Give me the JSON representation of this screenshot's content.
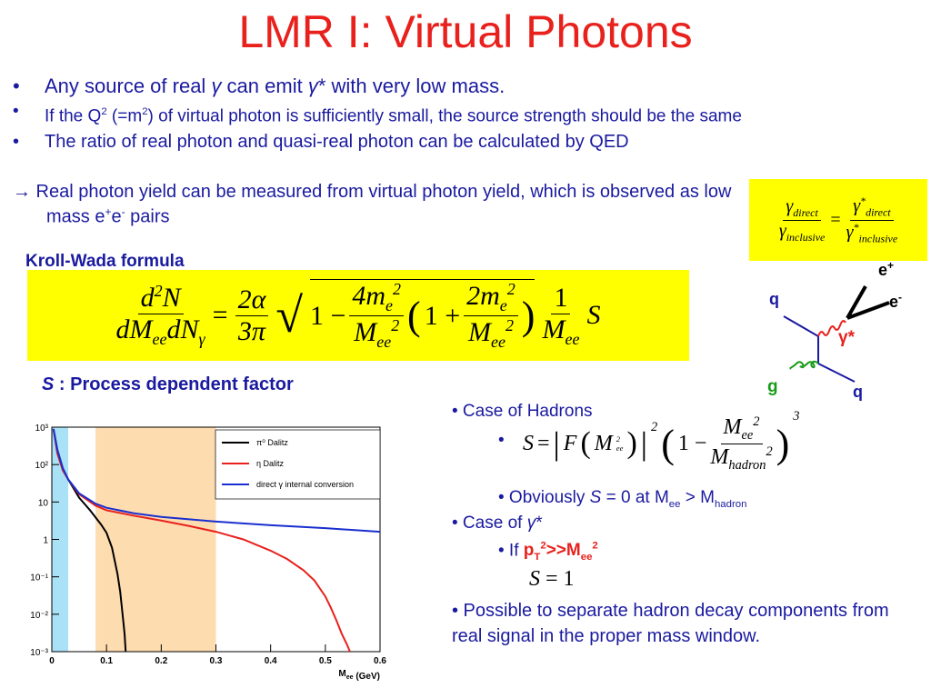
{
  "title": "LMR I: Virtual Photons",
  "bullet": "•",
  "bullets": [
    [
      "Any source of real ",
      {
        "i": "γ"
      },
      " can emit ",
      {
        "i": "γ"
      },
      "* with very low mass."
    ],
    [
      "If the Q",
      {
        "sup": "2"
      },
      " (=m",
      {
        "sup": "2"
      },
      ") of virtual photon is sufficiently small, the source strength should be the same"
    ],
    [
      "The ratio of real photon and quasi-real photon can be calculated by QED"
    ]
  ],
  "conclusion": [
    "→ Real photon yield can be measured from virtual photon yield, which is observed as low mass e",
    {
      "sup": "+"
    },
    "e",
    {
      "sup": "-"
    },
    " pairs"
  ],
  "ratio": [
    "γ",
    "direct",
    "γ",
    "inclusive",
    "=",
    "γ",
    "*",
    "direct",
    "γ",
    "*",
    "inclusive"
  ],
  "kroll_wada": {
    "label": "Kroll-Wada formula",
    "f": [
      "d",
      "2",
      "N",
      "dM",
      "ee",
      "dN",
      "γ",
      "=",
      "2α",
      "3π",
      "1 −",
      "4m",
      "e",
      "2",
      "M",
      "ee",
      "2",
      "1 +",
      "2m",
      "e",
      "2",
      "M",
      "ee",
      "2",
      "1",
      "M",
      "ee",
      "S"
    ]
  },
  "s_label": [
    "S",
    " : Process dependent factor"
  ],
  "feynman": {
    "e_plus": [
      "e",
      "+"
    ],
    "e_minus": [
      "e",
      "-"
    ],
    "q_in": "q",
    "q_out": "q",
    "gamma": "γ*",
    "gluon": "g"
  },
  "right": {
    "hadrons": "• Case of Hadrons",
    "hadron_formula": [
      "S",
      "=",
      "F",
      "M",
      "ee",
      "2",
      "2",
      "1 −",
      "M",
      "ee",
      "2",
      "M",
      "hadron",
      "2",
      "3"
    ],
    "obviously": [
      "• Obviously ",
      {
        "i": "S"
      },
      " = 0 at M",
      {
        "sub": "ee"
      },
      " > M",
      {
        "sub": "hadron"
      }
    ],
    "gamma_case": [
      "• Case of ",
      {
        "i": "γ"
      },
      "*"
    ],
    "if_prefix": "• If ",
    "if_cond": [
      "p",
      {
        "sub": "T"
      },
      {
        "sup": "2"
      },
      ">>M",
      {
        "sub": "ee"
      },
      {
        "sup": "2"
      }
    ],
    "s_one": [
      "S",
      "=",
      "1"
    ],
    "possible": "• Possible to separate hadron decay components from real signal in the proper mass window."
  },
  "plot": {
    "type": "line",
    "log_y": true,
    "xlim": [
      0,
      0.6
    ],
    "xticks": [
      0,
      0.1,
      0.2,
      0.3,
      0.4,
      0.5,
      0.6
    ],
    "ylim": [
      0.001,
      1000
    ],
    "yticks": [
      {
        "value": 0.001,
        "label": "10⁻³"
      },
      {
        "value": 0.01,
        "label": "10⁻²"
      },
      {
        "value": 0.1,
        "label": "10⁻¹"
      },
      1,
      10,
      {
        "value": 100,
        "label": "10²"
      },
      {
        "value": 1000,
        "label": "10³"
      }
    ],
    "xlabel": [
      "M",
      {
        "sub": "ee"
      },
      " (GeV)"
    ],
    "bands": [
      {
        "from": 0,
        "to": 0.03,
        "color": "#a9e2f7"
      },
      {
        "from": 0.08,
        "to": 0.3,
        "color": "#fddcb0"
      }
    ],
    "series": [
      {
        "name": "π⁰ Dalitz",
        "color": "#000000",
        "x": [
          0.003,
          0.01,
          0.02,
          0.03,
          0.05,
          0.07,
          0.09,
          0.1,
          0.11,
          0.12,
          0.125,
          0.13,
          0.133,
          0.135
        ],
        "values": [
          900,
          250,
          80,
          40,
          13,
          6,
          2.5,
          1.5,
          0.6,
          0.12,
          0.04,
          0.008,
          0.003,
          0.001
        ]
      },
      {
        "name": "η Dalitz",
        "color": "#e8211d",
        "x": [
          0.003,
          0.01,
          0.02,
          0.03,
          0.05,
          0.08,
          0.1,
          0.15,
          0.2,
          0.25,
          0.3,
          0.35,
          0.4,
          0.43,
          0.46,
          0.48,
          0.5,
          0.51,
          0.52,
          0.53,
          0.54,
          0.545
        ],
        "values": [
          900,
          200,
          70,
          40,
          16,
          8,
          6,
          4.3,
          3.2,
          2.3,
          1.6,
          1.0,
          0.5,
          0.3,
          0.15,
          0.08,
          0.03,
          0.015,
          0.007,
          0.003,
          0.0015,
          0.001
        ]
      },
      {
        "name": "direct γ internal conversion",
        "color": "#1a2fcf",
        "x": [
          0.003,
          0.01,
          0.02,
          0.03,
          0.05,
          0.08,
          0.1,
          0.15,
          0.2,
          0.3,
          0.4,
          0.5,
          0.6
        ],
        "values": [
          900,
          250,
          80,
          40,
          17,
          9,
          7,
          5,
          4,
          3,
          2.4,
          2,
          1.6
        ]
      }
    ]
  }
}
